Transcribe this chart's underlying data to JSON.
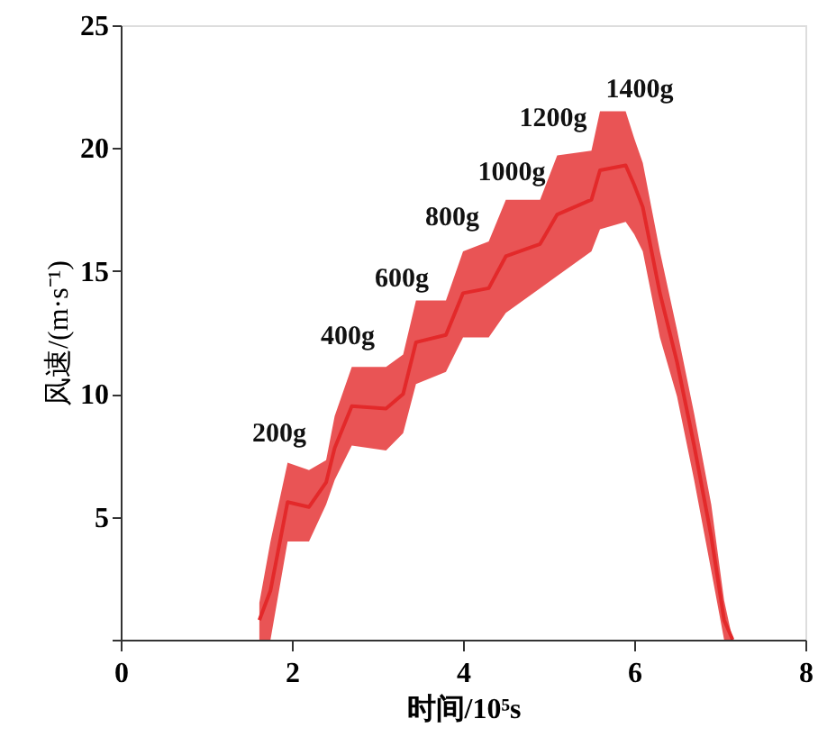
{
  "chart_data": {
    "type": "line",
    "xlabel": "时间/10⁵s",
    "ylabel": "风速/(m·s⁻¹)",
    "xlim": [
      0,
      8
    ],
    "xticks": [
      0,
      2,
      4,
      6,
      8
    ],
    "ylim": [
      0,
      25
    ],
    "yticks": [
      {
        "value": 0,
        "label": null
      },
      5,
      10,
      15,
      20,
      25
    ],
    "grid": false,
    "marker": "none",
    "line_style": "solid",
    "series": [
      {
        "color": "#e3292a",
        "x": [
          1.62,
          1.75,
          1.95,
          2.2,
          2.4,
          2.5,
          2.7,
          3.1,
          3.3,
          3.45,
          3.8,
          4.0,
          4.3,
          4.5,
          4.9,
          5.1,
          5.5,
          5.6,
          5.9,
          6.0,
          6.1,
          6.3,
          6.5,
          6.7,
          6.9,
          7.05,
          7.15
        ],
        "values": [
          0.8,
          2.0,
          5.6,
          5.4,
          6.4,
          7.8,
          9.5,
          9.4,
          10.0,
          12.1,
          12.4,
          14.1,
          14.3,
          15.6,
          16.1,
          17.3,
          17.9,
          19.1,
          19.3,
          18.5,
          17.6,
          14.1,
          11.3,
          7.9,
          4.2,
          0.8,
          0.0
        ],
        "lower": [
          0.0,
          0.0,
          4.0,
          4.0,
          5.5,
          6.5,
          7.9,
          7.7,
          8.4,
          10.4,
          10.9,
          12.3,
          12.3,
          13.3,
          14.3,
          14.8,
          15.8,
          16.7,
          17.0,
          16.5,
          15.8,
          12.3,
          9.9,
          6.5,
          2.8,
          0.0,
          0.0
        ],
        "upper": [
          1.5,
          4.0,
          7.2,
          6.9,
          7.3,
          9.1,
          11.1,
          11.1,
          11.6,
          13.8,
          13.8,
          15.8,
          16.2,
          17.9,
          17.9,
          19.7,
          19.9,
          21.5,
          21.5,
          20.4,
          19.4,
          15.8,
          12.6,
          9.2,
          5.5,
          1.6,
          0.0
        ]
      }
    ],
    "annotations": [
      "200g",
      "400g",
      "600g",
      "800g",
      "1000g",
      "1200g",
      "1400g"
    ]
  }
}
